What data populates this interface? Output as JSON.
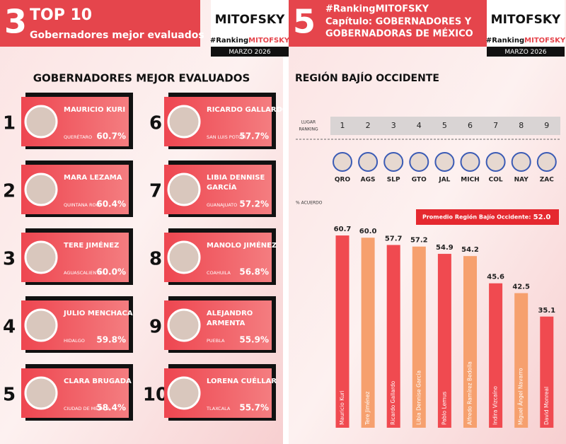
{
  "logo": {
    "name": "MITOFSKY",
    "hashtag_prefix": "#Ranking",
    "hashtag_brand": "MITOFSKY",
    "date": "MARZO 2026"
  },
  "left": {
    "header": {
      "number": "3",
      "title": "TOP 10",
      "subtitle": "Gobernadores mejor evaluados"
    },
    "heading": "GOBERNADORES MEJOR EVALUADOS",
    "governors": [
      {
        "rank": 1,
        "name": [
          "MAURICIO KURI"
        ],
        "state": "QUERÉTARO",
        "score": "60.7%"
      },
      {
        "rank": 2,
        "name": [
          "MARA LEZAMA"
        ],
        "state": "QUINTANA ROO",
        "score": "60.4%"
      },
      {
        "rank": 3,
        "name": [
          "TERE JIMÉNEZ"
        ],
        "state": "AGUASCALIENTES",
        "score": "60.0%"
      },
      {
        "rank": 4,
        "name": [
          "JULIO MENCHACA"
        ],
        "state": "HIDALGO",
        "score": "59.8%"
      },
      {
        "rank": 5,
        "name": [
          "CLARA BRUGADA"
        ],
        "state": "CIUDAD DE MÉXICO",
        "score": "58.4%"
      },
      {
        "rank": 6,
        "name": [
          "RICARDO GALLARDO"
        ],
        "state": "SAN LUIS POTOSÍ",
        "score": "57.7%"
      },
      {
        "rank": 7,
        "name": [
          "LIBIA DENNISE",
          "GARCÍA"
        ],
        "state": "GUANAJUATO",
        "score": "57.2%"
      },
      {
        "rank": 8,
        "name": [
          "MANOLO JIMÉNEZ"
        ],
        "state": "COAHUILA",
        "score": "56.8%"
      },
      {
        "rank": 9,
        "name": [
          "ALEJANDRO",
          "ARMENTA"
        ],
        "state": "PUEBLA",
        "score": "55.9%"
      },
      {
        "rank": 10,
        "name": [
          "LORENA CUÉLLAR"
        ],
        "state": "TLAXCALA",
        "score": "55.7%"
      }
    ]
  },
  "right": {
    "header": {
      "number": "5",
      "hashtag": "#RankingMITOFSKY",
      "line1": "Capítulo: GOBERNADORES Y",
      "line2": "GOBERNADORAS DE MÉXICO"
    },
    "heading": "REGIÓN BAJÍO OCCIDENTE",
    "rank_label": [
      "LUGAR",
      "RANKING"
    ],
    "ranks": [
      1,
      2,
      3,
      4,
      5,
      6,
      7,
      8,
      9
    ],
    "states": [
      "QRO",
      "AGS",
      "SLP",
      "GTO",
      "JAL",
      "MICH",
      "COL",
      "NAY",
      "ZAC"
    ],
    "axis_label": "% ACUERDO",
    "average_label": "Promedio Región Bajío Occidente:",
    "average": "52.0"
  },
  "chart_data": {
    "type": "bar",
    "categories": [
      "Mauricio Kuri",
      "Tere Jiménez",
      "Ricardo Gallardo",
      "Libia Dennise García",
      "Pablo Lemus",
      "Alfredo Ramírez Bedolla",
      "Indira Vizcaíno",
      "Miguel Ángel Navarro",
      "David Monreal"
    ],
    "values": [
      60.7,
      60.0,
      57.7,
      57.2,
      54.9,
      54.2,
      45.6,
      42.5,
      35.1
    ],
    "value_labels": [
      "60.7",
      "60.0",
      "57.7",
      "57.2",
      "54.9",
      "54.2",
      "45.6",
      "42.5",
      "35.1"
    ],
    "colors": [
      "#f04a50",
      "#f6a06e",
      "#f04a50",
      "#f6a06e",
      "#f04a50",
      "#f6a06e",
      "#f04a50",
      "#f6a06e",
      "#f04a50"
    ]
  }
}
